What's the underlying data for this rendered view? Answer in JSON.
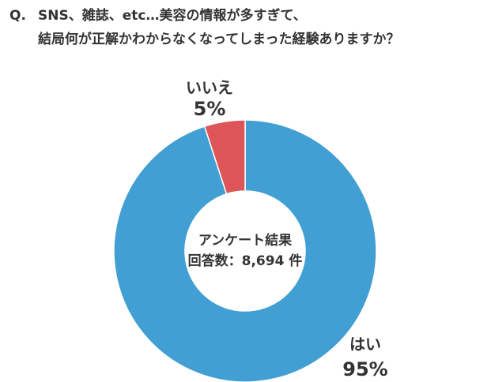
{
  "question": {
    "prefix": "Q.",
    "line1": "SNS、雑誌、etc…美容の情報が多すぎて、",
    "line2": "結局何が正解かわからなくなってしまった経験ありますか？"
  },
  "chart_data": {
    "type": "pie",
    "donut": true,
    "categories": [
      "はい",
      "いいえ"
    ],
    "values": [
      95,
      5
    ],
    "labels_percent": [
      "95%",
      "5%"
    ],
    "colors": [
      "#429fd3",
      "#dd5558"
    ],
    "center_line1": "アンケート結果",
    "center_line2": "回答数：8,694 件"
  }
}
